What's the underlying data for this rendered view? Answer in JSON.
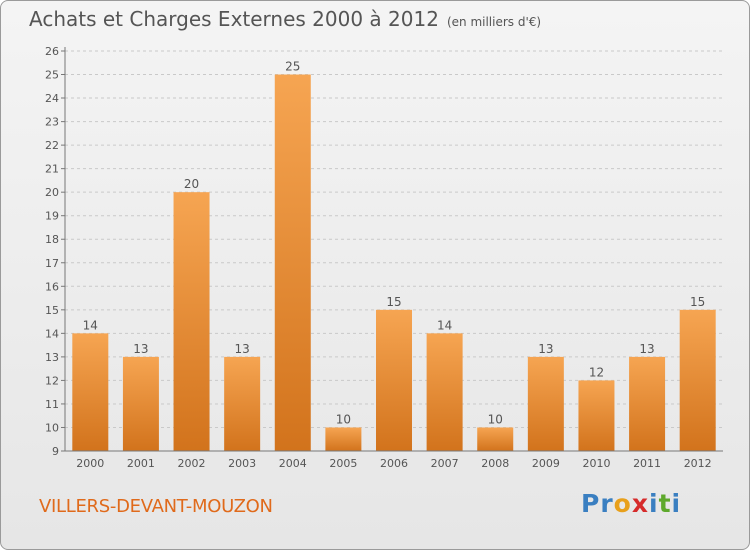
{
  "title": "Achats et Charges Externes 2000 à 2012",
  "subtitle": "(en milliers d'€)",
  "commune": "VILLERS-DEVANT-MOUZON",
  "logo": {
    "text": "Proxiti",
    "letters": [
      {
        "ch": "P",
        "color": "#3a7fc1"
      },
      {
        "ch": "r",
        "color": "#3a7fc1"
      },
      {
        "ch": "o",
        "color": "#e8a01b"
      },
      {
        "ch": "x",
        "color": "#d62b2b"
      },
      {
        "ch": "i",
        "color": "#3a7fc1"
      },
      {
        "ch": "t",
        "color": "#5ea92c"
      },
      {
        "ch": "i",
        "color": "#3a7fc1"
      }
    ]
  },
  "colors": {
    "bar_top": "#f6a552",
    "bar_bottom": "#d2731c",
    "grid": "#c9c9c9",
    "text": "#555555",
    "commune": "#e06a1b"
  },
  "chart_data": {
    "type": "bar",
    "categories": [
      "2000",
      "2001",
      "2002",
      "2003",
      "2004",
      "2005",
      "2006",
      "2007",
      "2008",
      "2009",
      "2010",
      "2011",
      "2012"
    ],
    "values": [
      14,
      13,
      20,
      13,
      25,
      10,
      15,
      14,
      10,
      13,
      12,
      13,
      15
    ],
    "title": "Achats et Charges Externes 2000 à 2012",
    "ylim": [
      9,
      26
    ],
    "yticks": [
      9,
      10,
      11,
      12,
      13,
      14,
      15,
      16,
      17,
      18,
      19,
      20,
      21,
      22,
      23,
      24,
      25,
      26
    ],
    "grid": true
  }
}
